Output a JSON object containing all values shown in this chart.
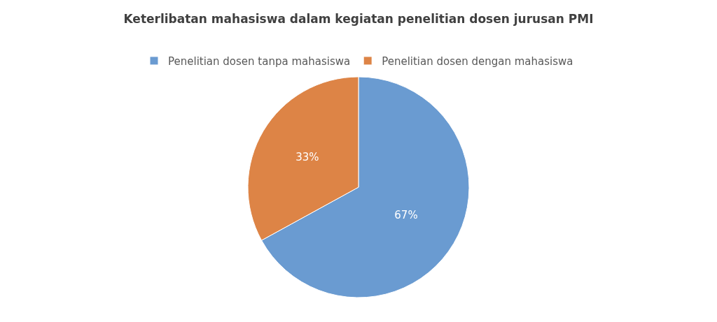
{
  "chart_data": {
    "type": "pie",
    "title": "Keterlibatan mahasiswa dalam kegiatan penelitian dosen jurusan PMI",
    "categories": [
      "Penelitian dosen tanpa mahasiswa",
      "Penelitian dosen dengan mahasiswa"
    ],
    "values": [
      67,
      33
    ],
    "colors": [
      "#6a9bd1",
      "#dd8446"
    ],
    "value_labels": [
      "67%",
      "33%"
    ],
    "legend": "top"
  }
}
